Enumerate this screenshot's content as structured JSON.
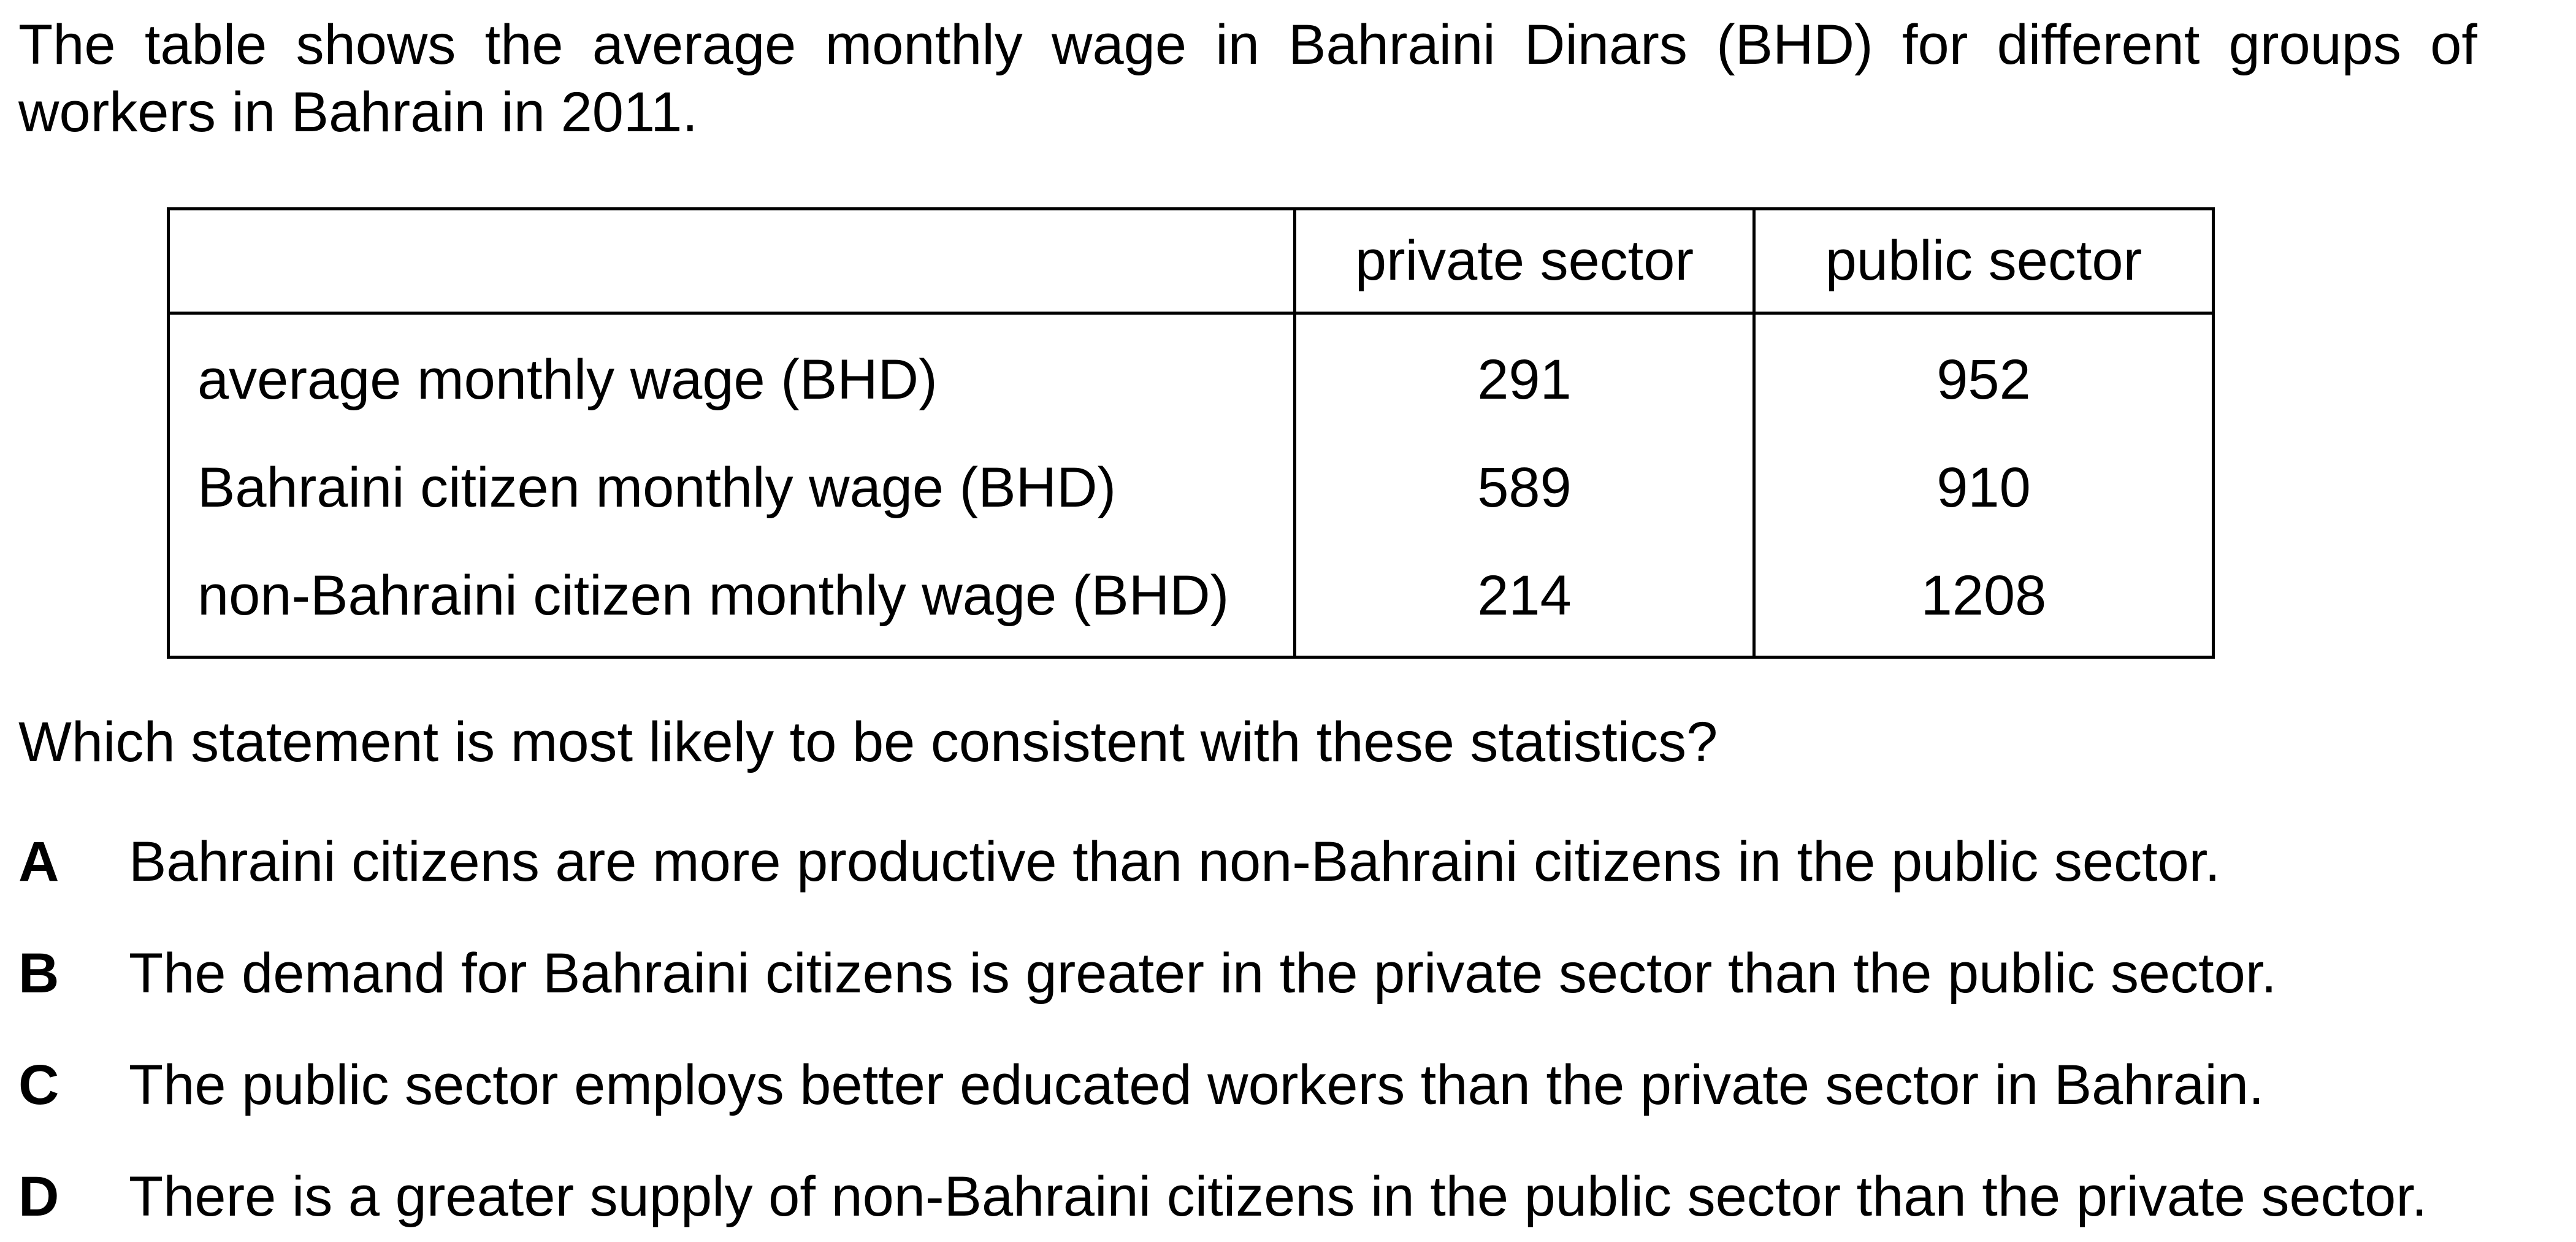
{
  "intro": "The table shows the average monthly wage in Bahraini Dinars (BHD) for different groups of workers in Bahrain in 2011.",
  "table": {
    "stub_header": "",
    "columns": [
      "private sector",
      "public sector"
    ],
    "rows": [
      {
        "label": "average monthly wage (BHD)",
        "values": [
          "291",
          "952"
        ]
      },
      {
        "label": "Bahraini citizen monthly wage (BHD)",
        "values": [
          "589",
          "910"
        ]
      },
      {
        "label": "non-Bahraini citizen monthly wage (BHD)",
        "values": [
          "214",
          "1208"
        ]
      }
    ]
  },
  "question": "Which statement is most likely to be consistent with these statistics?",
  "options": [
    {
      "letter": "A",
      "text": "Bahraini citizens are more productive than non-Bahraini citizens in the public sector."
    },
    {
      "letter": "B",
      "text": "The demand for Bahraini citizens is greater in the private sector than the public sector."
    },
    {
      "letter": "C",
      "text": "The public sector employs better educated workers than the private sector in Bahrain."
    },
    {
      "letter": "D",
      "text": "There is a greater supply of non-Bahraini citizens in the public sector than the private sector."
    }
  ]
}
